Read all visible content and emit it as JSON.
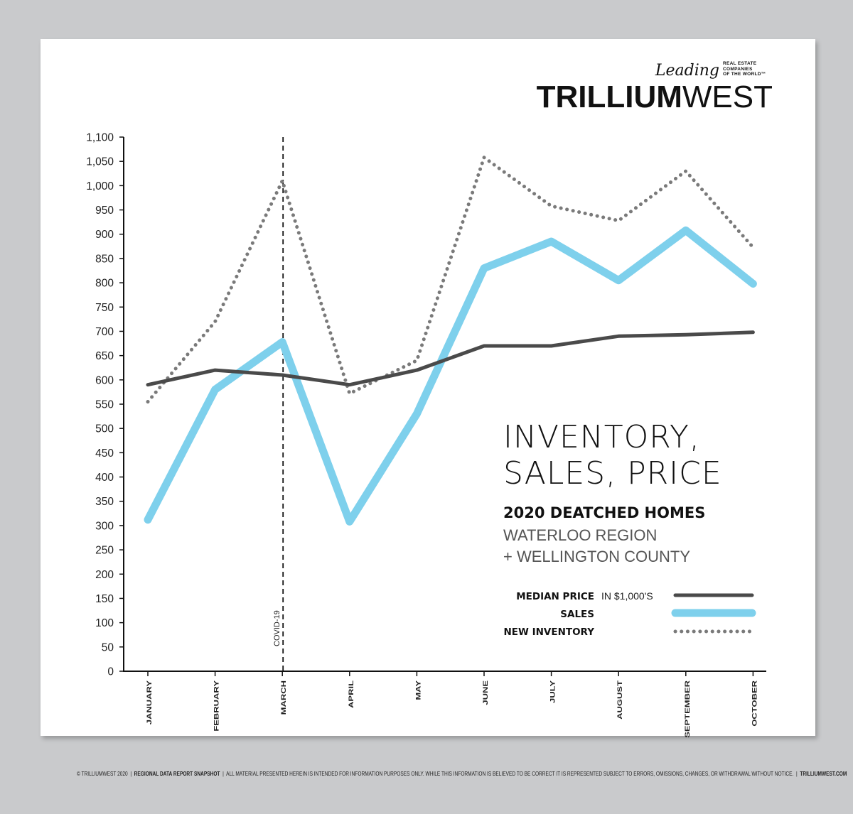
{
  "brand": {
    "leading": "Leading",
    "small_lines": [
      "REAL ESTATE",
      "COMPANIES",
      "OF THE WORLD™"
    ],
    "name_bold": "TRILLIUM",
    "name_light": "WEST"
  },
  "chart_data": {
    "type": "line",
    "title": "INVENTORY, SALES, PRICE",
    "title_lines": [
      "INVENTORY,",
      "SALES, PRICE"
    ],
    "subtitle": "2020 DEATCHED HOMES",
    "subtitle_lines": [
      "WATERLOO REGION",
      "+ WELLINGTON COUNTY"
    ],
    "categories": [
      "JANUARY",
      "FEBRUARY",
      "MARCH",
      "APRIL",
      "MAY",
      "JUNE",
      "JULY",
      "AUGUST",
      "SEPTEMBER",
      "OCTOBER"
    ],
    "ylim": [
      0,
      1100
    ],
    "yticks": [
      0,
      50,
      100,
      150,
      200,
      250,
      300,
      350,
      400,
      450,
      500,
      550,
      600,
      650,
      700,
      750,
      800,
      850,
      900,
      950,
      1000,
      1050,
      1100
    ],
    "ytick_labels": [
      "0",
      "50",
      "100",
      "150",
      "200",
      "250",
      "300",
      "350",
      "400",
      "450",
      "500",
      "550",
      "600",
      "650",
      "700",
      "750",
      "800",
      "850",
      "900",
      "950",
      "1,000",
      "1,050",
      "1,100"
    ],
    "series": [
      {
        "name": "MEDIAN PRICE",
        "note": "IN $1,000'S",
        "style": "solid",
        "color": "#4a4a4a",
        "values": [
          590,
          620,
          610,
          590,
          620,
          670,
          670,
          690,
          693,
          698
        ]
      },
      {
        "name": "SALES",
        "style": "thick",
        "color": "#7ed0ec",
        "values": [
          312,
          580,
          678,
          308,
          530,
          830,
          885,
          805,
          908,
          798
        ]
      },
      {
        "name": "NEW INVENTORY",
        "style": "dotted",
        "color": "#7a7a7a",
        "values": [
          555,
          720,
          1010,
          572,
          640,
          1058,
          958,
          928,
          1030,
          873
        ]
      }
    ],
    "annotation": {
      "label": "COVID-19",
      "category": "MARCH"
    },
    "legend_position": "bottom-right",
    "grid": false
  },
  "footer": {
    "copyright": "© TRILLIUMWEST 2020",
    "report": "REGIONAL DATA REPORT SNAPSHOT",
    "disclaimer": "ALL MATERIAL PRESENTED HEREIN IS INTENDED FOR INFORMATION PURPOSES ONLY. WHILE THIS INFORMATION IS BELIEVED TO BE CORRECT IT IS REPRESENTED SUBJECT TO ERRORS, OMISSIONS, CHANGES, OR WITHDRAWAL WITHOUT NOTICE.",
    "site": "TRILLIUMWEST.COM",
    "separator": "|"
  }
}
